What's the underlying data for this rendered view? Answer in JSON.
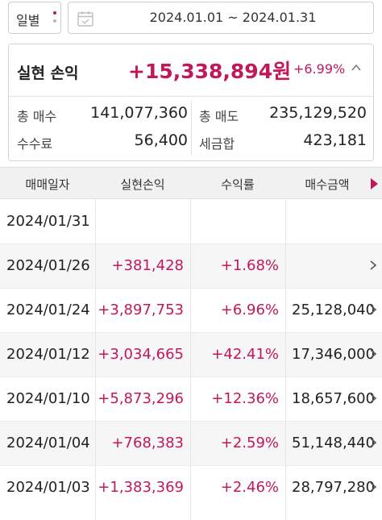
{
  "filter": {
    "period_label": "일별",
    "date_range": "2024.01.01 ~ 2024.01.31"
  },
  "summary": {
    "title": "실현 손익",
    "total_profit": "+15,338,894원",
    "total_rate": "+6.99%",
    "total_buy_label": "총 매수",
    "total_buy": "141,077,360",
    "total_sell_label": "총 매도",
    "total_sell": "235,129,520",
    "fee_label": "수수료",
    "fee": "56,400",
    "tax_label": "세금합",
    "tax": "423,181"
  },
  "table": {
    "headers": [
      "매매일자",
      "실현손익",
      "수익률",
      "매수금액"
    ],
    "rows": [
      {
        "date": "2024/01/31",
        "profit": "",
        "yield": "",
        "buy": ""
      },
      {
        "date": "2024/01/26",
        "profit": "+381,428",
        "yield": "+1.68%",
        "buy": ""
      },
      {
        "date": "2024/01/24",
        "profit": "+3,897,753",
        "yield": "+6.96%",
        "buy": "25,128,040"
      },
      {
        "date": "2024/01/12",
        "profit": "+3,034,665",
        "yield": "+42.41%",
        "buy": "17,346,000"
      },
      {
        "date": "2024/01/10",
        "profit": "+5,873,296",
        "yield": "+12.36%",
        "buy": "18,657,600"
      },
      {
        "date": "2024/01/04",
        "profit": "+768,383",
        "yield": "+2.59%",
        "buy": "51,148,440"
      },
      {
        "date": "2024/01/03",
        "profit": "+1,383,369",
        "yield": "+2.46%",
        "buy": "28,797,280"
      }
    ]
  },
  "colors": {
    "accent": "#c2185b",
    "header_bg": "#f1f1f1",
    "alt_row_bg": "#f6f6f6"
  }
}
